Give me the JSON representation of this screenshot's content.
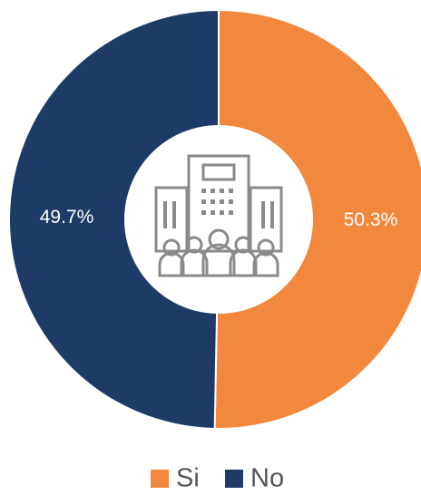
{
  "chart_data": {
    "type": "donut",
    "categories": [
      "Si",
      "No"
    ],
    "values": [
      50.3,
      49.7
    ],
    "value_labels": [
      "50.3%",
      "49.7%"
    ],
    "colors": [
      "#f2883d",
      "#1e3a66"
    ],
    "legend": "bottom"
  }
}
